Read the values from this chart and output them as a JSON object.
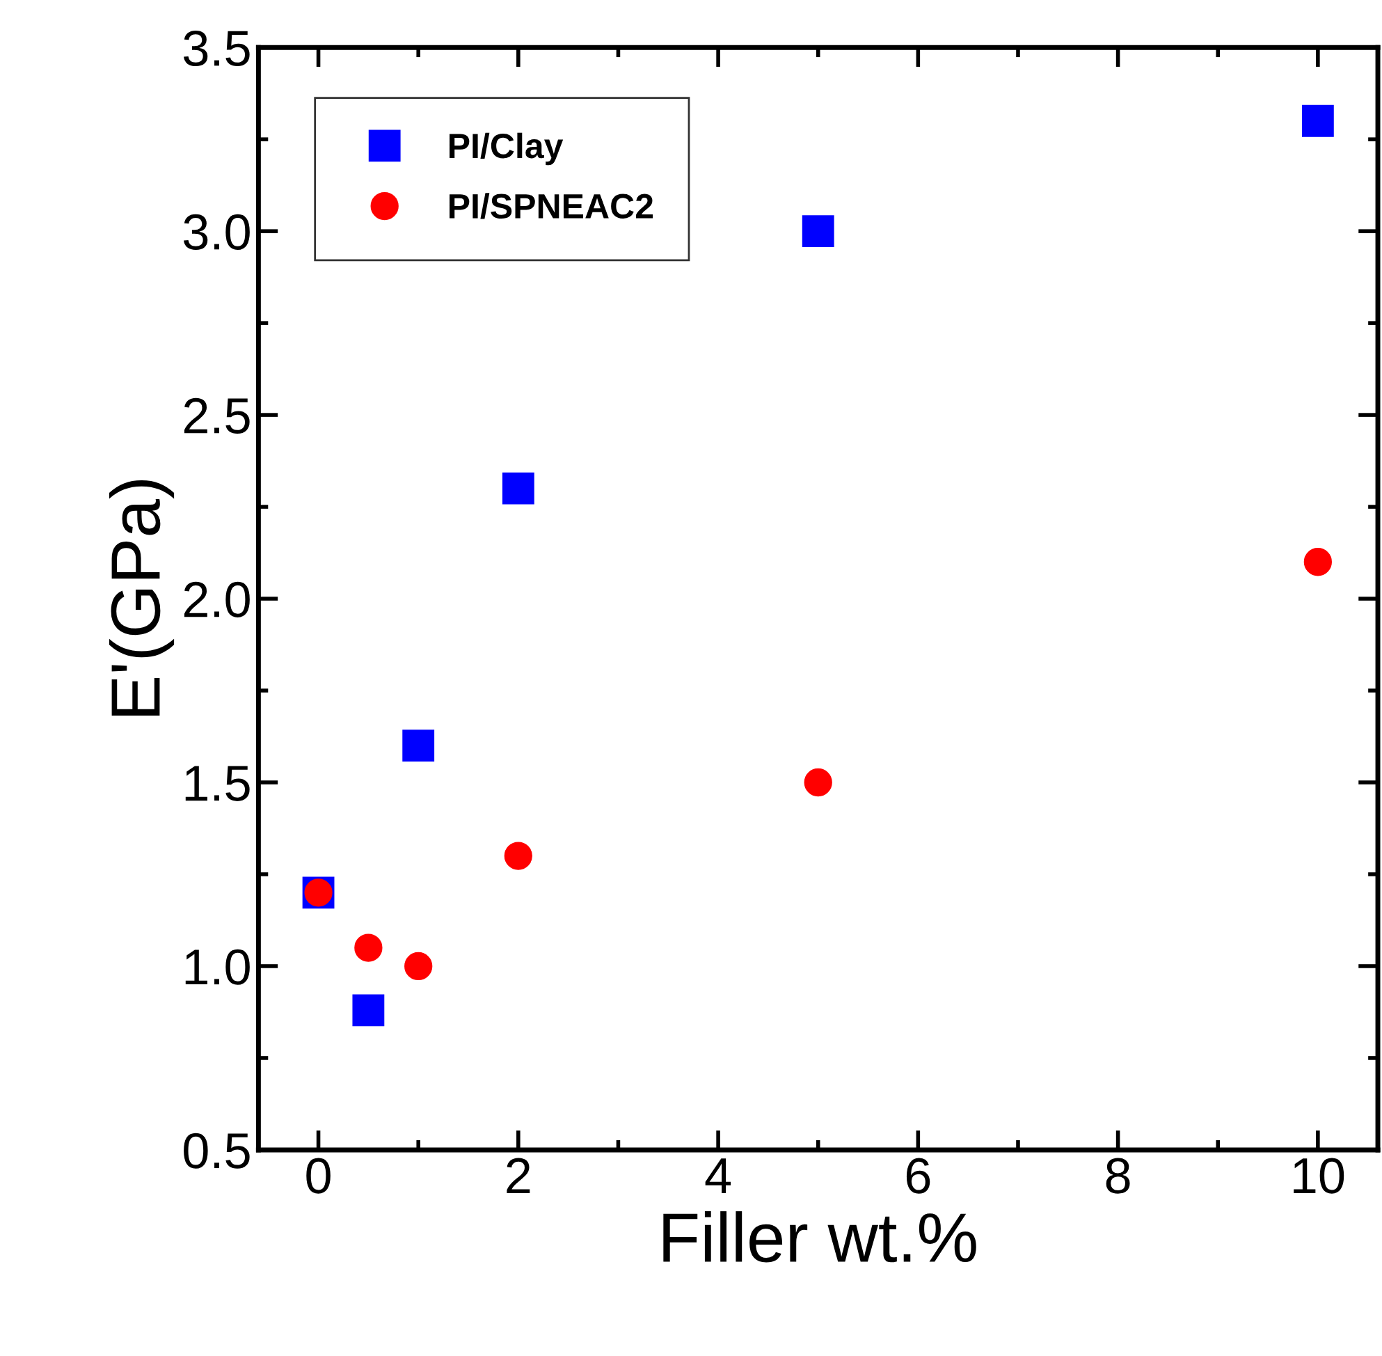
{
  "chart_data": {
    "type": "scatter",
    "xlabel": "Filler wt.%",
    "ylabel": "E'(GPa)",
    "x": [
      0,
      0.5,
      1,
      2,
      5,
      10
    ],
    "series": [
      {
        "name": "PI/Clay",
        "color": "#0000ff",
        "marker": "square",
        "values": [
          1.2,
          0.88,
          1.6,
          2.3,
          3.0,
          3.3
        ]
      },
      {
        "name": "PI/SPNEAC2",
        "color": "#ff0000",
        "marker": "circle",
        "values": [
          1.2,
          1.05,
          1.0,
          1.3,
          1.5,
          2.1
        ]
      }
    ],
    "xlim": [
      -0.6,
      10.6
    ],
    "ylim": [
      0.5,
      3.5
    ],
    "xticks": [
      0,
      2,
      4,
      6,
      8,
      10
    ],
    "yticks": [
      {
        "value": 0.5,
        "label": "0.5"
      },
      {
        "value": 1.0,
        "label": "1.0"
      },
      {
        "value": 1.5,
        "label": "1.5"
      },
      {
        "value": 2.0,
        "label": "2.0"
      },
      {
        "value": 2.5,
        "label": "2.5"
      },
      {
        "value": 3.0,
        "label": "3.0"
      },
      {
        "value": 3.5,
        "label": "3.5"
      }
    ],
    "grid": false,
    "legend": "top left"
  }
}
